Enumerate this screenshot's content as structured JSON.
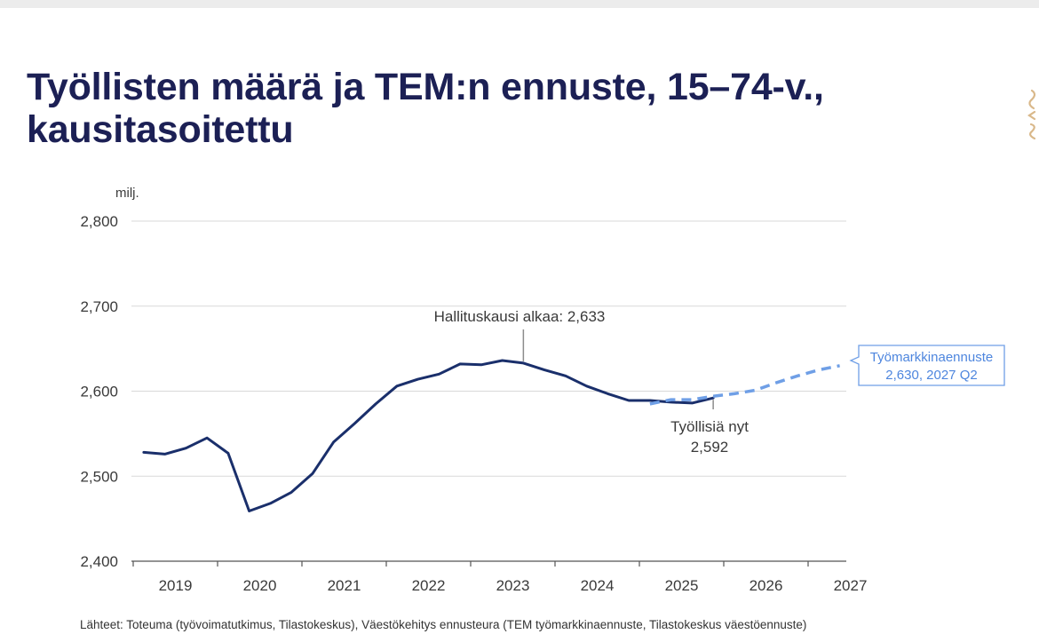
{
  "title": "Työllisten määrä ja TEM:n ennuste, 15–74-v., kausitasoitettu",
  "source_note": "Lähteet: Toteuma (työvoimatutkimus, Tilastokeskus), Väestökehitys ennusteura (TEM työmarkkinaennuste, Tilastokeskus väestöennuste)",
  "colors": {
    "title": "#1c2055",
    "actual": "#1a2f6b",
    "forecast": "#6f9fe6",
    "grid": "#d9d9d9",
    "logo": "#d9b88a"
  },
  "chart_data": {
    "type": "line",
    "unit": "milj.",
    "ylim": [
      2.4,
      2.8
    ],
    "yticks": [
      "2,400",
      "2,500",
      "2,600",
      "2,700",
      "2,800"
    ],
    "ytick_values": [
      2.4,
      2.5,
      2.6,
      2.7,
      2.8
    ],
    "year_labels": [
      "2019",
      "2020",
      "2021",
      "2022",
      "2023",
      "2024",
      "2025",
      "2026",
      "2027"
    ],
    "grid": true,
    "series": [
      {
        "style": "solid",
        "points": [
          {
            "x": "2019 Q1",
            "y": 2.528
          },
          {
            "x": "2019 Q2",
            "y": 2.526
          },
          {
            "x": "2019 Q3",
            "y": 2.533
          },
          {
            "x": "2019 Q4",
            "y": 2.545
          },
          {
            "x": "2020 Q1",
            "y": 2.527
          },
          {
            "x": "2020 Q2",
            "y": 2.459
          },
          {
            "x": "2020 Q3",
            "y": 2.468
          },
          {
            "x": "2020 Q4",
            "y": 2.481
          },
          {
            "x": "2021 Q1",
            "y": 2.503
          },
          {
            "x": "2021 Q2",
            "y": 2.54
          },
          {
            "x": "2021 Q3",
            "y": 2.562
          },
          {
            "x": "2021 Q4",
            "y": 2.585
          },
          {
            "x": "2022 Q1",
            "y": 2.606
          },
          {
            "x": "2022 Q2",
            "y": 2.614
          },
          {
            "x": "2022 Q3",
            "y": 2.62
          },
          {
            "x": "2022 Q4",
            "y": 2.632
          },
          {
            "x": "2023 Q1",
            "y": 2.631
          },
          {
            "x": "2023 Q2",
            "y": 2.636
          },
          {
            "x": "2023 Q3",
            "y": 2.633
          },
          {
            "x": "2023 Q4",
            "y": 2.625
          },
          {
            "x": "2024 Q1",
            "y": 2.618
          },
          {
            "x": "2024 Q2",
            "y": 2.606
          },
          {
            "x": "2024 Q3",
            "y": 2.597
          },
          {
            "x": "2024 Q4",
            "y": 2.589
          },
          {
            "x": "2025 Q1",
            "y": 2.589
          },
          {
            "x": "2025 Q2",
            "y": 2.587
          },
          {
            "x": "2025 Q3",
            "y": 2.586
          },
          {
            "x": "2025 Q4",
            "y": 2.592
          }
        ]
      },
      {
        "style": "dashed",
        "points": [
          {
            "x": "2025 Q1",
            "y": 2.585
          },
          {
            "x": "2025 Q2",
            "y": 2.59
          },
          {
            "x": "2025 Q3",
            "y": 2.59
          },
          {
            "x": "2025 Q4",
            "y": 2.594
          },
          {
            "x": "2026 Q1",
            "y": 2.597
          },
          {
            "x": "2026 Q2",
            "y": 2.601
          },
          {
            "x": "2026 Q3",
            "y": 2.61
          },
          {
            "x": "2026 Q4",
            "y": 2.618
          },
          {
            "x": "2027 Q1",
            "y": 2.625
          },
          {
            "x": "2027 Q2",
            "y": 2.63
          }
        ]
      }
    ],
    "annotations": [
      {
        "id": "hallituskausi",
        "lines": [
          "Hallituskausi alkaa: 2,633"
        ],
        "x": "2023 Q3",
        "y": 2.633
      },
      {
        "id": "tyollisia-nyt",
        "lines": [
          "Työllisiä nyt",
          "2,592"
        ],
        "x": "2025 Q4",
        "y": 2.592
      },
      {
        "id": "ennuste",
        "lines": [
          "Työmarkkinaennuste",
          "2,630, 2027 Q2"
        ],
        "x": "2027 Q2",
        "y": 2.63
      }
    ]
  }
}
